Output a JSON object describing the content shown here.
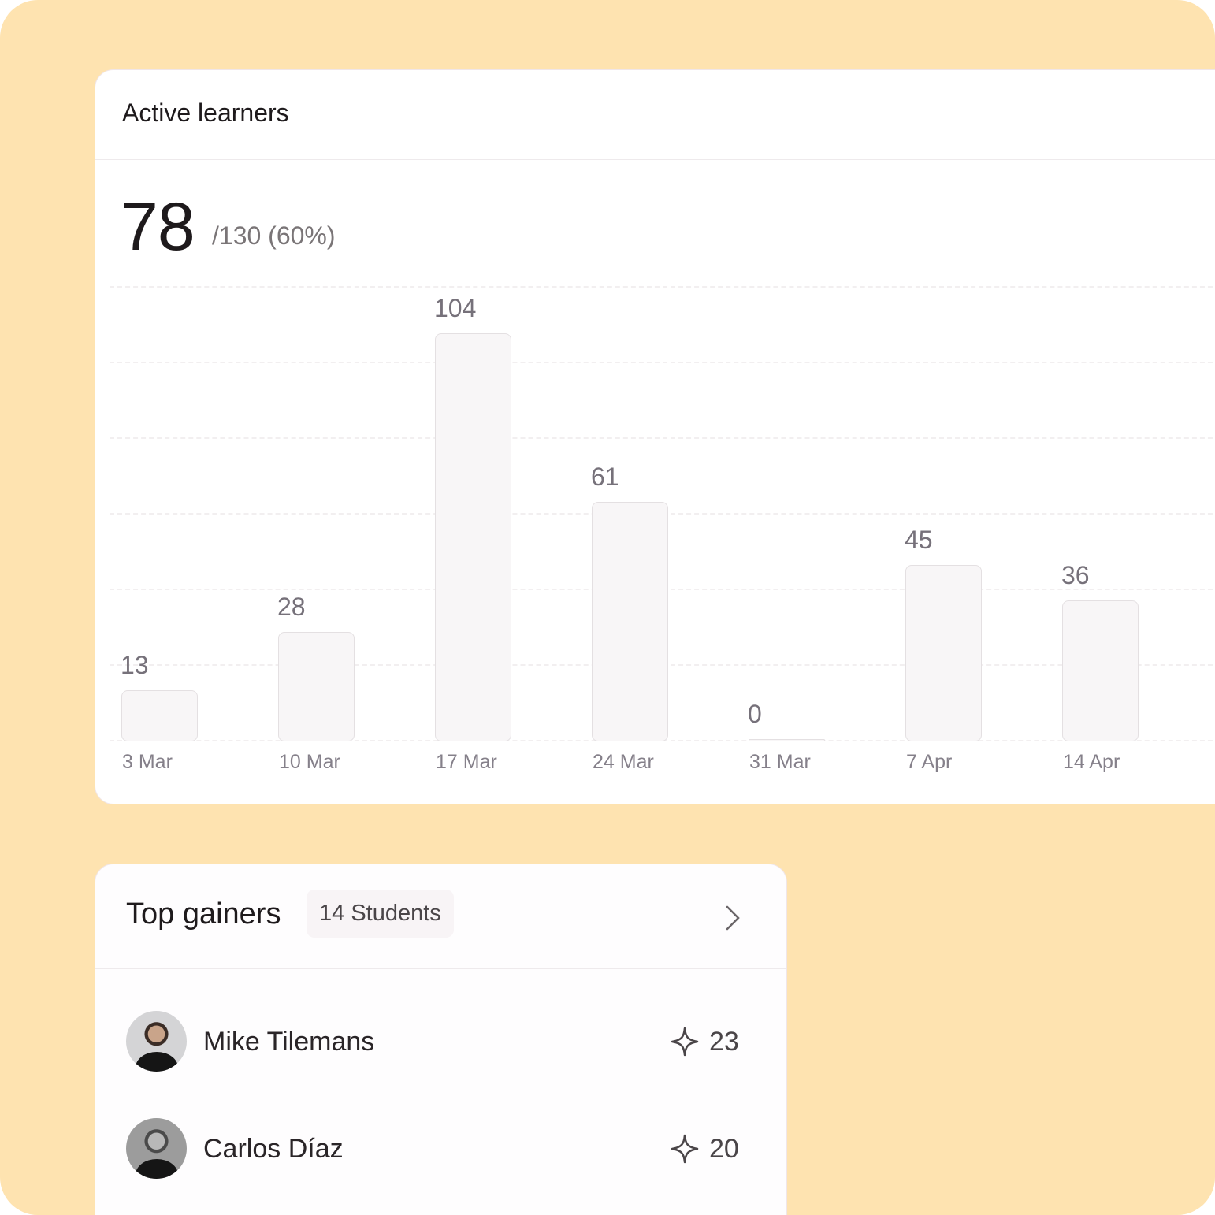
{
  "active_learners": {
    "title": "Active learners",
    "count": "78",
    "total_text": "/130 (60%)"
  },
  "chart_data": {
    "type": "bar",
    "categories": [
      "3 Mar",
      "10 Mar",
      "17 Mar",
      "24 Mar",
      "31 Mar",
      "7 Apr",
      "14 Apr"
    ],
    "values": [
      13,
      28,
      104,
      61,
      0,
      45,
      36
    ],
    "value_labels": [
      "13",
      "28",
      "104",
      "61",
      "0",
      "45",
      "36"
    ],
    "grid": true,
    "colors": {
      "bar_fill": "#f8f6f7",
      "bar_border": "#e4e0e2"
    }
  },
  "top_gainers": {
    "title": "Top gainers",
    "badge": "14 Students",
    "students": [
      {
        "name": "Mike Tilemans",
        "score": "23",
        "icon": "sparkle-icon"
      },
      {
        "name": "Carlos Díaz",
        "score": "20",
        "icon": "sparkle-icon"
      }
    ]
  },
  "colors": {
    "background": "#fee3b0",
    "card": "#ffffff"
  }
}
